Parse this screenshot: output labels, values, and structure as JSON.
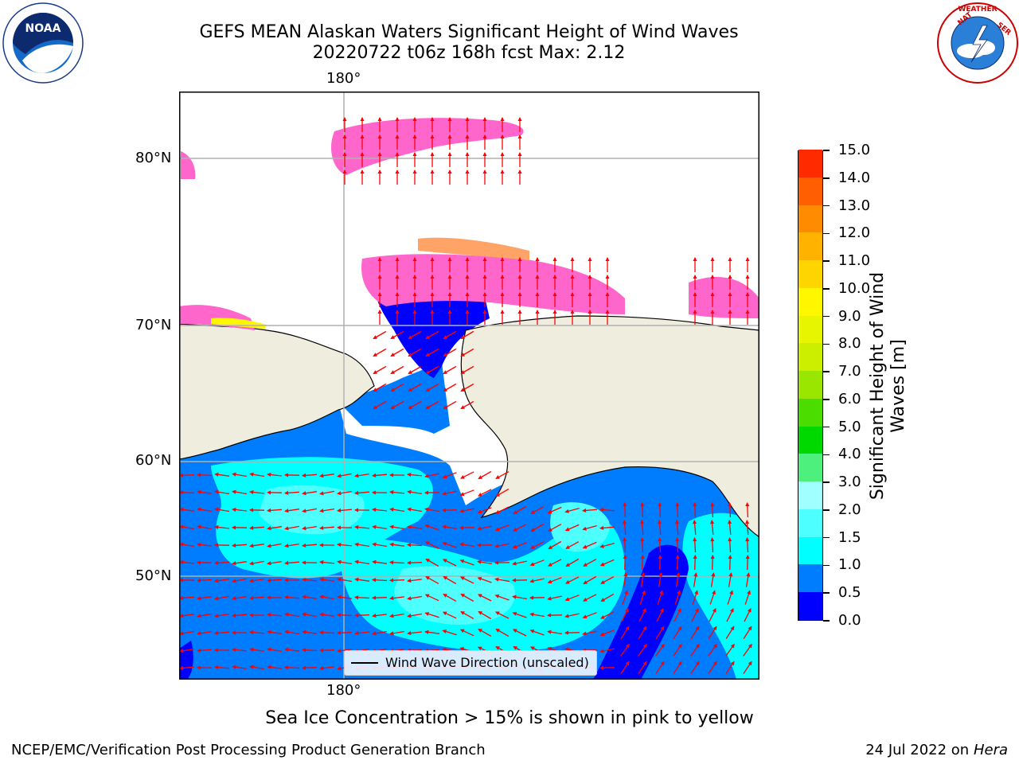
{
  "header": {
    "title_line1": "GEFS MEAN Alaskan Waters Significant Height of Wind Waves",
    "title_line2": "20220722 t06z 168h fcst   Max: 2.12"
  },
  "logos": {
    "left": {
      "icon": "noaa-logo",
      "text": "NOAA"
    },
    "right": {
      "icon": "nws-logo",
      "text": "NATIONAL WEATHER SERVICE"
    }
  },
  "map": {
    "lon_label_top": "180°",
    "lon_label_bottom": "180°",
    "lat_labels": [
      "80°N",
      "70°N",
      "60°N",
      "50°N"
    ],
    "legend_label": "Wind Wave Direction (unscaled)",
    "colors": {
      "ocean_low": "#0000ff",
      "ocean_mid": "#007cff",
      "ocean_high": "#00ffff",
      "land": "#efeede",
      "ice": "#ff66cc",
      "arrows": "#ff0000",
      "grid": "#b0b0b0"
    }
  },
  "colorbar": {
    "title": "Significant Height of Wind Waves [m]",
    "tick_labels": [
      "0.0",
      "0.5",
      "1.0",
      "1.5",
      "2.0",
      "3.0",
      "4.0",
      "5.0",
      "6.0",
      "7.0",
      "8.0",
      "9.0",
      "10.0",
      "11.0",
      "12.0",
      "13.0",
      "14.0",
      "15.0"
    ],
    "colors": [
      "#0000ff",
      "#007cff",
      "#00ffff",
      "#4dffff",
      "#a0ffff",
      "#4df07d",
      "#00d900",
      "#4cdd00",
      "#9ae600",
      "#ccef00",
      "#e8f500",
      "#fff700",
      "#ffd500",
      "#ffb200",
      "#ff8c00",
      "#ff5f00",
      "#ff2a00",
      "#ff0000"
    ]
  },
  "note": "Sea Ice Concentration > 15% is shown in pink to yellow",
  "footer": {
    "left": "NCEP/EMC/Verification Post Processing Product Generation Branch",
    "right_prefix": "24 Jul 2022 on ",
    "right_host": "Hera"
  }
}
